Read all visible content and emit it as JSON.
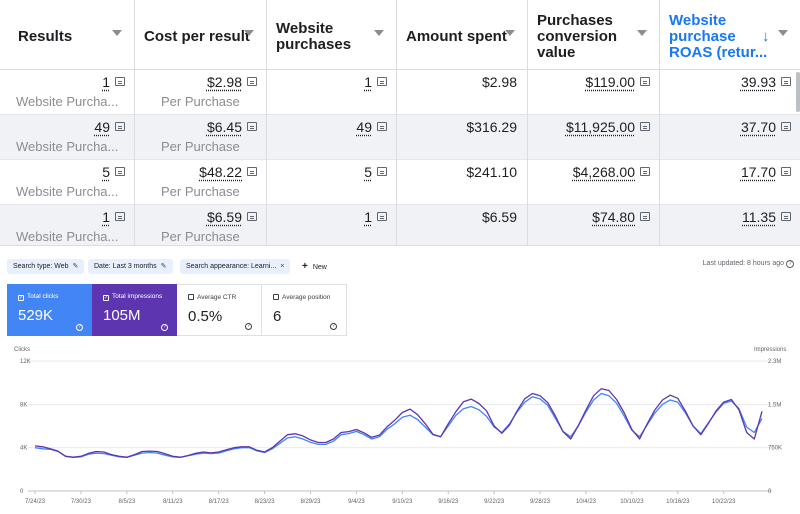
{
  "ads_table": {
    "headers": [
      {
        "label_lines": [
          "Results"
        ]
      },
      {
        "label_lines": [
          "Cost per result"
        ]
      },
      {
        "label_lines": [
          "Website",
          "purchases"
        ]
      },
      {
        "label_lines": [
          "Amount spent"
        ]
      },
      {
        "label_lines": [
          "Purchases",
          "conversion",
          "value"
        ]
      },
      {
        "label_lines": [
          "Website",
          "purchase",
          "ROAS (retur..."
        ],
        "sorted": "descending",
        "sort_icon": "arrow-down-icon"
      }
    ],
    "rows": [
      {
        "results": "1",
        "results_sub": "Website Purcha...",
        "cost_per_result": "$2.98",
        "cost_sub": "Per Purchase",
        "website_purchases": "1",
        "amount_spent": "$2.98",
        "conversion_value": "$119.00",
        "roas": "39.93"
      },
      {
        "results": "49",
        "results_sub": "Website Purcha...",
        "cost_per_result": "$6.45",
        "cost_sub": "Per Purchase",
        "website_purchases": "49",
        "amount_spent": "$316.29",
        "conversion_value": "$11,925.00",
        "roas": "37.70"
      },
      {
        "results": "5",
        "results_sub": "Website Purcha...",
        "cost_per_result": "$48.22",
        "cost_sub": "Per Purchase",
        "website_purchases": "5",
        "amount_spent": "$241.10",
        "conversion_value": "$4,268.00",
        "roas": "17.70"
      },
      {
        "results": "1",
        "results_sub": "Website Purcha...",
        "cost_per_result": "$6.59",
        "cost_sub": "Per Purchase",
        "website_purchases": "1",
        "amount_spent": "$6.59",
        "conversion_value": "$74.80",
        "roas": "11.35"
      }
    ],
    "colors": {
      "active_header": "#1877f2",
      "row_shade": "#f0f2f5"
    }
  },
  "search_console": {
    "filters": [
      {
        "label": "Search type: Web",
        "icon": "edit-icon"
      },
      {
        "label": "Date: Last 3 months",
        "icon": "edit-icon"
      },
      {
        "label": "Search appearance: Learni...",
        "icon": "close-icon"
      }
    ],
    "new_label": "New",
    "last_updated": "Last updated: 8 hours ago",
    "metrics": [
      {
        "label": "Total clicks",
        "value": "529K",
        "checked": true,
        "color": "#4285f4"
      },
      {
        "label": "Total impressions",
        "value": "105M",
        "checked": true,
        "color": "#5e35b1"
      },
      {
        "label": "Average CTR",
        "value": "0.5%",
        "checked": false
      },
      {
        "label": "Average position",
        "value": "6",
        "checked": false
      }
    ]
  },
  "chart_data": {
    "type": "line",
    "left_axis_title": "Clicks",
    "right_axis_title": "Impressions",
    "left_ticks": [
      "12K",
      "8K",
      "4K",
      "0"
    ],
    "left_tick_values": [
      12000,
      8000,
      4000,
      0
    ],
    "right_ticks": [
      "2.3M",
      "1.5M",
      "750K",
      "0"
    ],
    "right_tick_values": [
      2250000,
      1500000,
      750000,
      0
    ],
    "x_ticks": [
      "7/24/23",
      "7/30/23",
      "8/5/23",
      "8/11/23",
      "8/17/23",
      "8/23/23",
      "8/29/23",
      "9/4/23",
      "9/10/23",
      "9/16/23",
      "9/22/23",
      "9/28/23",
      "10/4/23",
      "10/10/23",
      "10/16/23",
      "10/22/23"
    ],
    "x_tick_day_index": [
      0,
      6,
      12,
      18,
      24,
      30,
      36,
      42,
      48,
      54,
      60,
      66,
      72,
      78,
      84,
      90
    ],
    "grid": true,
    "series": [
      {
        "axis": "left",
        "color": "#4285f4",
        "values": [
          4000,
          3900,
          3850,
          3650,
          3200,
          3100,
          3150,
          3400,
          3500,
          3450,
          3300,
          3150,
          3100,
          3300,
          3500,
          3550,
          3500,
          3300,
          3150,
          3100,
          3250,
          3400,
          3500,
          3450,
          3500,
          3700,
          3900,
          4000,
          4000,
          3700,
          3550,
          3900,
          4400,
          4900,
          5000,
          4800,
          4500,
          4300,
          4300,
          4600,
          5200,
          5300,
          5500,
          5200,
          4800,
          5000,
          5700,
          6200,
          6800,
          7000,
          6600,
          5900,
          5200,
          5000,
          6000,
          7000,
          7600,
          7800,
          7500,
          6900,
          5900,
          5400,
          6200,
          7300,
          8200,
          8700,
          8500,
          7900,
          6700,
          5500,
          5000,
          6000,
          7300,
          8400,
          9000,
          8800,
          8100,
          6900,
          5600,
          5000,
          6100,
          7200,
          8000,
          8400,
          8200,
          7200,
          6000,
          5300,
          6300,
          7300,
          8100,
          8300,
          7600,
          5900,
          5400,
          6700
        ]
      },
      {
        "axis": "right",
        "color": "#5e35b1",
        "values": [
          780000,
          765000,
          731000,
          690000,
          600000,
          585000,
          600000,
          653000,
          683000,
          675000,
          630000,
          600000,
          585000,
          630000,
          683000,
          690000,
          683000,
          645000,
          600000,
          585000,
          615000,
          653000,
          675000,
          660000,
          675000,
          713000,
          750000,
          765000,
          765000,
          705000,
          675000,
          750000,
          863000,
          975000,
          990000,
          953000,
          885000,
          840000,
          840000,
          900000,
          1013000,
          1028000,
          1065000,
          1005000,
          930000,
          968000,
          1110000,
          1223000,
          1358000,
          1418000,
          1320000,
          1163000,
          983000,
          938000,
          1163000,
          1373000,
          1545000,
          1590000,
          1515000,
          1388000,
          1125000,
          998000,
          1140000,
          1388000,
          1598000,
          1688000,
          1650000,
          1530000,
          1298000,
          1028000,
          900000,
          1133000,
          1403000,
          1650000,
          1770000,
          1740000,
          1583000,
          1350000,
          1065000,
          900000,
          1163000,
          1403000,
          1575000,
          1658000,
          1605000,
          1380000,
          1125000,
          975000,
          1170000,
          1388000,
          1538000,
          1583000,
          1403000,
          1013000,
          900000,
          1380000
        ]
      }
    ]
  }
}
